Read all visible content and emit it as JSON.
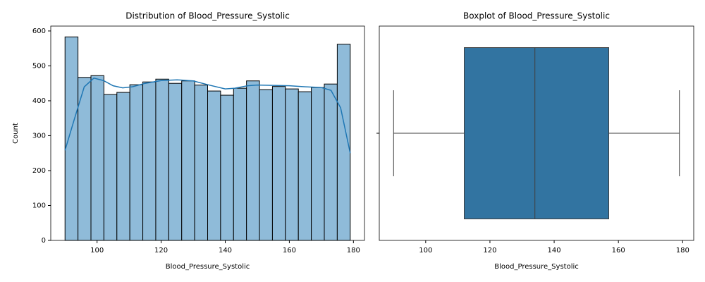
{
  "chart_data": [
    {
      "type": "histogram",
      "title": "Distribution of Blood_Pressure_Systolic",
      "xlabel": "Blood_Pressure_Systolic",
      "ylabel": "Count",
      "bins": [
        90,
        94.045,
        98.091,
        102.136,
        106.182,
        110.227,
        114.273,
        118.318,
        122.364,
        126.409,
        130.455,
        134.5,
        138.545,
        142.591,
        146.636,
        150.682,
        154.727,
        158.773,
        162.818,
        166.864,
        170.909,
        174.955,
        179
      ],
      "values": [
        583,
        467,
        472,
        418,
        424,
        446,
        454,
        462,
        450,
        457,
        445,
        428,
        416,
        436,
        457,
        432,
        441,
        434,
        426,
        438,
        448,
        562
      ],
      "color": "#8fbbd9",
      "kde": {
        "x": [
          90,
          93,
          96,
          99,
          102,
          105,
          108,
          111,
          115,
          120,
          125,
          130,
          135,
          140,
          143,
          147,
          150,
          155,
          160,
          165,
          170,
          173,
          176,
          179
        ],
        "values": [
          258,
          350,
          440,
          465,
          458,
          443,
          437,
          440,
          450,
          458,
          460,
          457,
          445,
          434,
          436,
          443,
          445,
          444,
          443,
          440,
          438,
          430,
          380,
          250
        ],
        "color": "#1f77b4"
      },
      "xlim": [
        85.55,
        183.45
      ],
      "ylim": [
        0,
        614
      ],
      "xticks": [
        100,
        120,
        140,
        160,
        180
      ],
      "yticks": [
        0,
        100,
        200,
        300,
        400,
        500,
        600
      ]
    },
    {
      "type": "box",
      "title": "Boxplot of Blood_Pressure_Systolic",
      "xlabel": "Blood_Pressure_Systolic",
      "min": 90,
      "q1": 112,
      "median": 134,
      "q3": 157,
      "max": 179,
      "color": "#3274a1",
      "xlim": [
        85.55,
        183.45
      ],
      "xticks": [
        100,
        120,
        140,
        160,
        180
      ]
    }
  ]
}
